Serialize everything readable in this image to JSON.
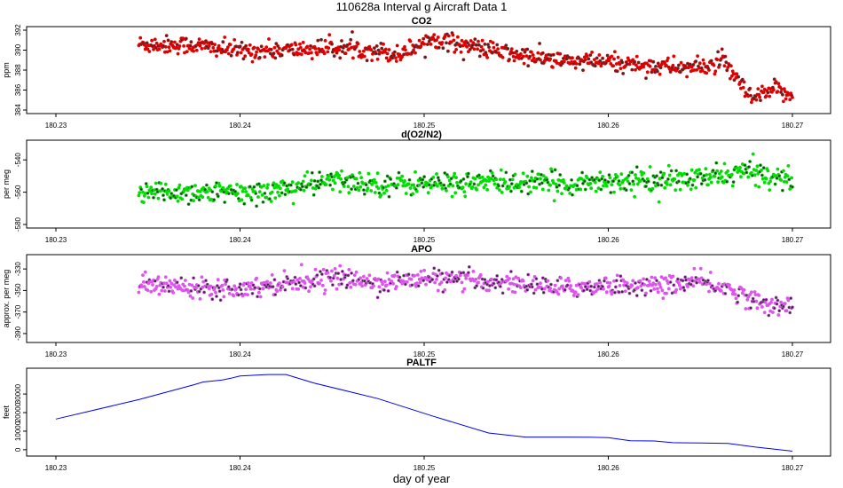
{
  "figure": {
    "title": "110628a   Interval g Aircraft Data 1",
    "xlabel": "day of year"
  },
  "chart_data": [
    {
      "type": "scatter",
      "title": "CO2",
      "ylabel": "ppm",
      "xlim": [
        180.23,
        180.27
      ],
      "ylim": [
        384,
        392
      ],
      "x_ticks": [
        "180.23",
        "180.24",
        "180.25",
        "180.26",
        "180.27"
      ],
      "y_ticks": [
        "384",
        "386",
        "388",
        "390",
        "392"
      ],
      "series": [
        {
          "marker_color": "#e00000",
          "point_count": 800,
          "trend": [
            [
              180.2345,
              390.6
            ],
            [
              180.2375,
              390.5
            ],
            [
              180.24,
              389.9
            ],
            [
              180.2425,
              390.0
            ],
            [
              180.245,
              390.2
            ],
            [
              180.2475,
              390.0
            ],
            [
              180.2485,
              389.5
            ],
            [
              180.2505,
              391.2
            ],
            [
              180.2525,
              390.4
            ],
            [
              180.255,
              389.5
            ],
            [
              180.2575,
              388.9
            ],
            [
              180.26,
              388.8
            ],
            [
              180.2625,
              388.4
            ],
            [
              180.265,
              388.2
            ],
            [
              180.2662,
              388.9
            ],
            [
              180.2668,
              387.5
            ],
            [
              180.2678,
              385.0
            ],
            [
              180.269,
              386.0
            ],
            [
              180.27,
              385.6
            ]
          ],
          "spread": 0.45
        }
      ]
    },
    {
      "type": "scatter",
      "title": "d(O2/N2)",
      "ylabel": "per meg",
      "xlim": [
        180.23,
        180.27
      ],
      "ylim": [
        -580,
        -530
      ],
      "x_ticks": [
        "180.23",
        "180.24",
        "180.25",
        "180.26",
        "180.27"
      ],
      "y_ticks": [
        "-540",
        "-560",
        "-580"
      ],
      "y_ticks_values": [
        -540,
        -560,
        -580
      ],
      "series": [
        {
          "marker_color": "#00dd00",
          "point_count": 800,
          "trend": [
            [
              180.2345,
              -560
            ],
            [
              180.2375,
              -560
            ],
            [
              180.24,
              -561
            ],
            [
              180.2425,
              -558
            ],
            [
              180.245,
              -553
            ],
            [
              180.2475,
              -555
            ],
            [
              180.25,
              -555
            ],
            [
              180.2525,
              -554
            ],
            [
              180.255,
              -554
            ],
            [
              180.2575,
              -555
            ],
            [
              180.26,
              -553
            ],
            [
              180.2625,
              -553
            ],
            [
              180.265,
              -552
            ],
            [
              180.2675,
              -547
            ],
            [
              180.27,
              -552
            ]
          ],
          "spread": 3.5
        }
      ]
    },
    {
      "type": "scatter",
      "title": "APO",
      "ylabel": "approx. per meg",
      "xlim": [
        180.23,
        180.27
      ],
      "ylim": [
        -395,
        -320
      ],
      "x_ticks": [
        "180.23",
        "180.24",
        "180.25",
        "180.26",
        "180.27"
      ],
      "y_ticks": [
        "-330",
        "-350",
        "-370",
        "-390"
      ],
      "y_ticks_values": [
        -330,
        -350,
        -370,
        -390
      ],
      "series": [
        {
          "marker_color": "#dd55ee",
          "point_count": 800,
          "trend": [
            [
              180.2345,
              -345
            ],
            [
              180.2375,
              -346
            ],
            [
              180.24,
              -348
            ],
            [
              180.2425,
              -343
            ],
            [
              180.245,
              -338
            ],
            [
              180.2475,
              -343
            ],
            [
              180.25,
              -339
            ],
            [
              180.2525,
              -341
            ],
            [
              180.255,
              -343
            ],
            [
              180.2575,
              -348
            ],
            [
              180.26,
              -345
            ],
            [
              180.2625,
              -346
            ],
            [
              180.265,
              -342
            ],
            [
              180.2668,
              -350
            ],
            [
              180.2685,
              -364
            ],
            [
              180.27,
              -362
            ]
          ],
          "spread": 4.5
        }
      ]
    },
    {
      "type": "line",
      "title": "PALTF",
      "ylabel": "feet",
      "xlim": [
        180.23,
        180.27
      ],
      "ylim": [
        -1500,
        42000
      ],
      "x_ticks": [
        "180.23",
        "180.24",
        "180.25",
        "180.26",
        "180.27"
      ],
      "y_ticks": [
        "0",
        "10000",
        "20000",
        "30000"
      ],
      "y_ticks_values": [
        0,
        10000,
        20000,
        30000
      ],
      "series": [
        {
          "line_color": "#0000ee",
          "x": [
            180.23,
            180.2345,
            180.2375,
            180.238,
            180.239,
            180.2395,
            180.24,
            180.2415,
            180.2425,
            180.244,
            180.2475,
            180.2505,
            180.2535,
            180.2555,
            180.2575,
            180.259,
            180.26,
            180.2612,
            180.2625,
            180.2635,
            180.265,
            180.2665,
            180.268,
            180.27
          ],
          "y": [
            16500,
            27000,
            35000,
            36500,
            37500,
            38500,
            39700,
            40500,
            40500,
            36000,
            27500,
            18000,
            9000,
            6800,
            6800,
            6700,
            6500,
            4800,
            4700,
            3800,
            3600,
            3400,
            1400,
            -800
          ]
        }
      ]
    }
  ]
}
